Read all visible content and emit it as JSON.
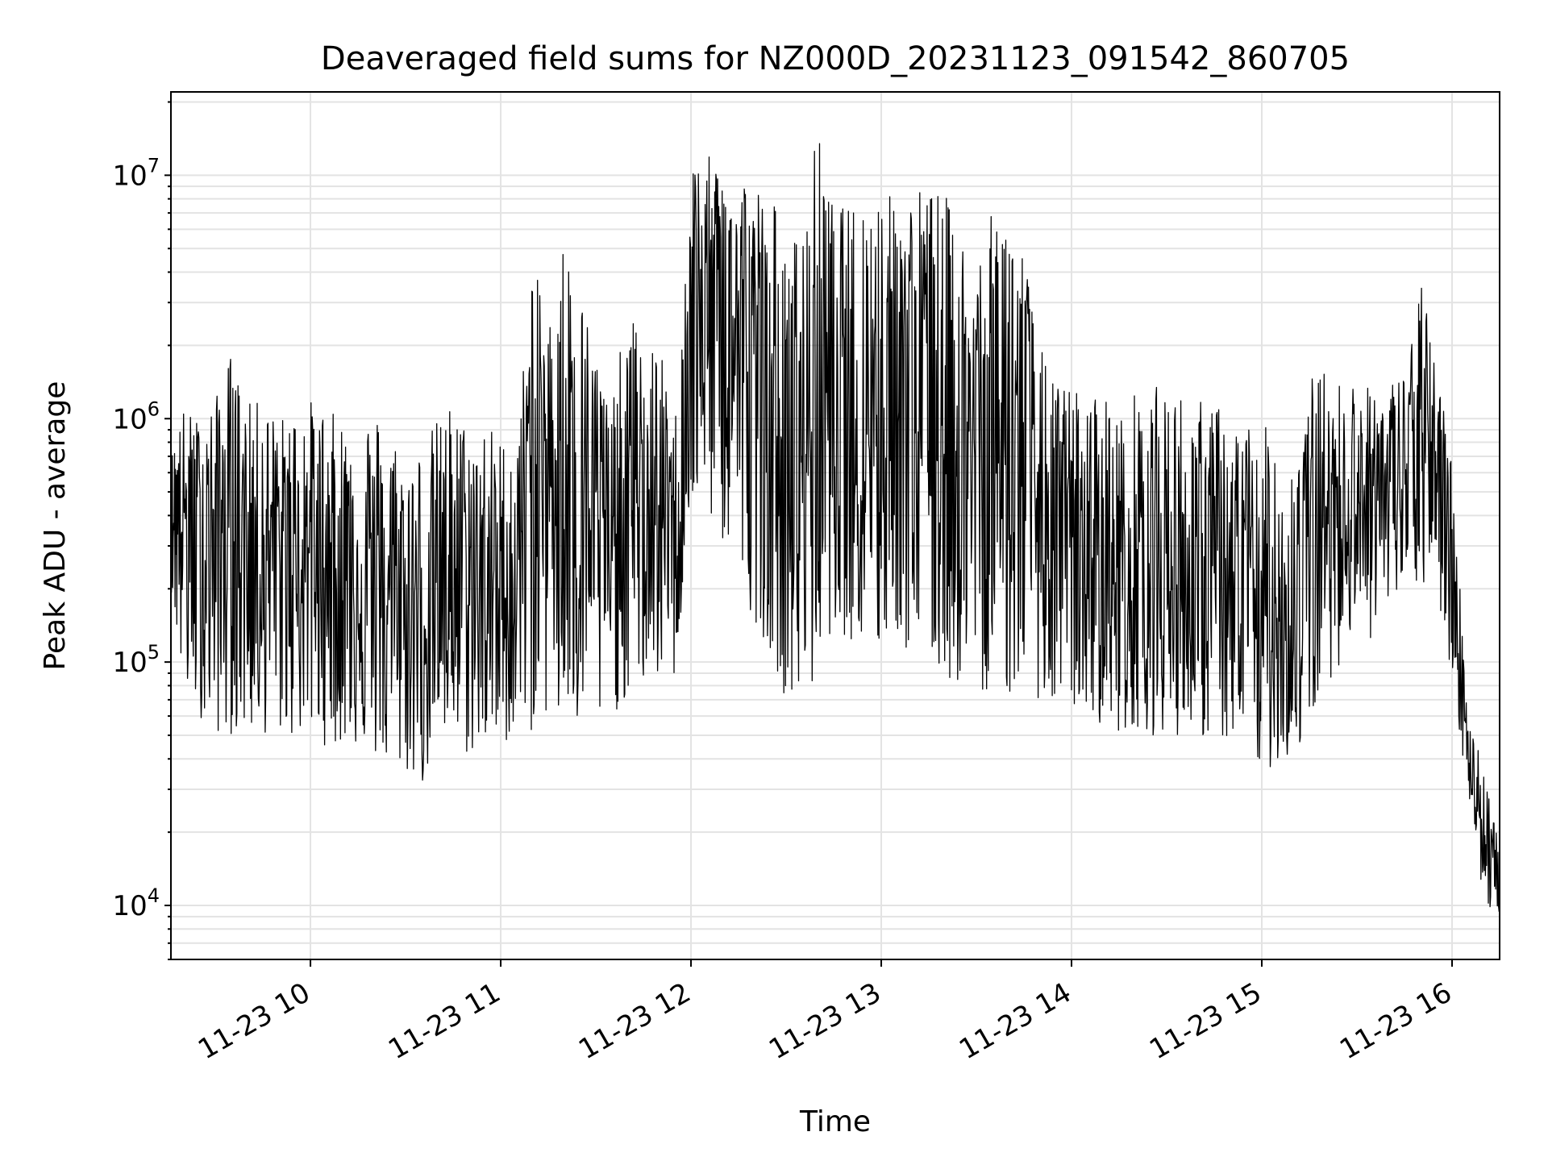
{
  "chart_data": {
    "type": "line",
    "title": "Deaveraged field sums for NZ000D_20231123_091542_860705",
    "xlabel": "Time",
    "ylabel": "Peak ADU - average",
    "y_scale": "log",
    "ylim": [
      6000,
      22000000
    ],
    "xlim": [
      "2023-11-23 09:16",
      "2023-11-23 16:15"
    ],
    "grid": true,
    "x_ticks": [
      {
        "value": "2023-11-23 10:00",
        "label": "11-23 10"
      },
      {
        "value": "2023-11-23 11:00",
        "label": "11-23 11"
      },
      {
        "value": "2023-11-23 12:00",
        "label": "11-23 12"
      },
      {
        "value": "2023-11-23 13:00",
        "label": "11-23 13"
      },
      {
        "value": "2023-11-23 14:00",
        "label": "11-23 14"
      },
      {
        "value": "2023-11-23 15:00",
        "label": "11-23 15"
      },
      {
        "value": "2023-11-23 16:00",
        "label": "11-23 16"
      }
    ],
    "y_ticks": [
      {
        "value": 10000,
        "base": "10",
        "exp": "4"
      },
      {
        "value": 100000,
        "base": "10",
        "exp": "5"
      },
      {
        "value": 1000000,
        "base": "10",
        "exp": "6"
      },
      {
        "value": 10000000,
        "base": "10",
        "exp": "7"
      }
    ],
    "line_color": "#000000",
    "series": [
      {
        "x": [
          "2023-11-23 09:16",
          "2023-11-23 09:20",
          "2023-11-23 09:25",
          "2023-11-23 09:30",
          "2023-11-23 09:35",
          "2023-11-23 09:40",
          "2023-11-23 09:45",
          "2023-11-23 09:50",
          "2023-11-23 09:55",
          "2023-11-23 10:00",
          "2023-11-23 10:05",
          "2023-11-23 10:10",
          "2023-11-23 10:15",
          "2023-11-23 10:20",
          "2023-11-23 10:25",
          "2023-11-23 10:30",
          "2023-11-23 10:35",
          "2023-11-23 10:40",
          "2023-11-23 10:45",
          "2023-11-23 10:50",
          "2023-11-23 10:55",
          "2023-11-23 11:00",
          "2023-11-23 11:05",
          "2023-11-23 11:10",
          "2023-11-23 11:15",
          "2023-11-23 11:20",
          "2023-11-23 11:25",
          "2023-11-23 11:30",
          "2023-11-23 11:35",
          "2023-11-23 11:40",
          "2023-11-23 11:45",
          "2023-11-23 11:50",
          "2023-11-23 11:55",
          "2023-11-23 12:00",
          "2023-11-23 12:05",
          "2023-11-23 12:10",
          "2023-11-23 12:15",
          "2023-11-23 12:20",
          "2023-11-23 12:25",
          "2023-11-23 12:30",
          "2023-11-23 12:35",
          "2023-11-23 12:40",
          "2023-11-23 12:45",
          "2023-11-23 12:50",
          "2023-11-23 12:55",
          "2023-11-23 13:00",
          "2023-11-23 13:05",
          "2023-11-23 13:10",
          "2023-11-23 13:15",
          "2023-11-23 13:20",
          "2023-11-23 13:25",
          "2023-11-23 13:30",
          "2023-11-23 13:35",
          "2023-11-23 13:40",
          "2023-11-23 13:45",
          "2023-11-23 13:50",
          "2023-11-23 13:55",
          "2023-11-23 14:00",
          "2023-11-23 14:05",
          "2023-11-23 14:10",
          "2023-11-23 14:15",
          "2023-11-23 14:20",
          "2023-11-23 14:25",
          "2023-11-23 14:30",
          "2023-11-23 14:35",
          "2023-11-23 14:40",
          "2023-11-23 14:45",
          "2023-11-23 14:50",
          "2023-11-23 14:55",
          "2023-11-23 15:00",
          "2023-11-23 15:05",
          "2023-11-23 15:10",
          "2023-11-23 15:15",
          "2023-11-23 15:20",
          "2023-11-23 15:25",
          "2023-11-23 15:30",
          "2023-11-23 15:35",
          "2023-11-23 15:40",
          "2023-11-23 15:45",
          "2023-11-23 15:50",
          "2023-11-23 15:55",
          "2023-11-23 16:00",
          "2023-11-23 16:05",
          "2023-11-23 16:10",
          "2023-11-23 16:15"
        ],
        "high": [
          700000,
          1100000,
          1000000,
          1200000,
          1900000,
          1150000,
          1200000,
          1000000,
          1100000,
          1200000,
          1100000,
          1000000,
          1050000,
          1100000,
          950000,
          700000,
          800000,
          1000000,
          1200000,
          900000,
          1000000,
          850000,
          800000,
          4500000,
          2500000,
          5800000,
          3500000,
          2000000,
          1100000,
          3000000,
          2000000,
          2000000,
          1000000,
          12000000,
          12000000,
          11500000,
          12000000,
          9000000,
          10000000,
          4500000,
          7000000,
          15500000,
          7500000,
          7500000,
          8500000,
          9000000,
          8000000,
          9000000,
          9500000,
          8500000,
          6000000,
          5000000,
          7000000,
          8500000,
          5000000,
          2000000,
          1400000,
          1400000,
          1200000,
          1400000,
          1000000,
          1300000,
          1400000,
          1300000,
          1300000,
          1200000,
          1200000,
          1000000,
          1000000,
          900000,
          1000000,
          700000,
          1500000,
          1600000,
          1400000,
          1500000,
          1300000,
          1400000,
          1600000,
          3700000,
          1800000,
          700000,
          60000,
          40000,
          17000
        ],
        "low": [
          200000,
          70000,
          60000,
          50000,
          50000,
          50000,
          50000,
          50000,
          48000,
          50000,
          45000,
          45000,
          45000,
          40000,
          35000,
          35000,
          30000,
          45000,
          45000,
          40000,
          45000,
          42000,
          55000,
          50000,
          60000,
          45000,
          50000,
          50000,
          60000,
          70000,
          80000,
          85000,
          85000,
          400000,
          400000,
          300000,
          200000,
          150000,
          110000,
          70000,
          65000,
          80000,
          150000,
          120000,
          100000,
          100000,
          130000,
          90000,
          100000,
          80000,
          80000,
          70000,
          80000,
          70000,
          80000,
          70000,
          60000,
          65000,
          60000,
          55000,
          50000,
          55000,
          50000,
          50000,
          50000,
          48000,
          50000,
          45000,
          40000,
          35000,
          38000,
          40000,
          50000,
          80000,
          100000,
          150000,
          120000,
          150000,
          200000,
          200000,
          200000,
          80000,
          30000,
          10000,
          9000
        ],
        "median": [
          500000,
          400000,
          350000,
          350000,
          400000,
          350000,
          300000,
          300000,
          300000,
          300000,
          250000,
          250000,
          250000,
          200000,
          180000,
          160000,
          150000,
          200000,
          250000,
          200000,
          200000,
          180000,
          200000,
          1000000,
          600000,
          1000000,
          500000,
          400000,
          300000,
          500000,
          400000,
          400000,
          300000,
          2500000,
          3000000,
          2500000,
          2000000,
          1500000,
          900000,
          500000,
          600000,
          2000000,
          900000,
          900000,
          1200000,
          1500000,
          1500000,
          1200000,
          1000000,
          1000000,
          800000,
          700000,
          700000,
          900000,
          700000,
          400000,
          300000,
          300000,
          250000,
          250000,
          220000,
          250000,
          250000,
          220000,
          220000,
          200000,
          200000,
          180000,
          170000,
          150000,
          160000,
          160000,
          300000,
          400000,
          450000,
          500000,
          500000,
          500000,
          550000,
          700000,
          700000,
          300000,
          45000,
          20000,
          12000
        ]
      }
    ]
  }
}
